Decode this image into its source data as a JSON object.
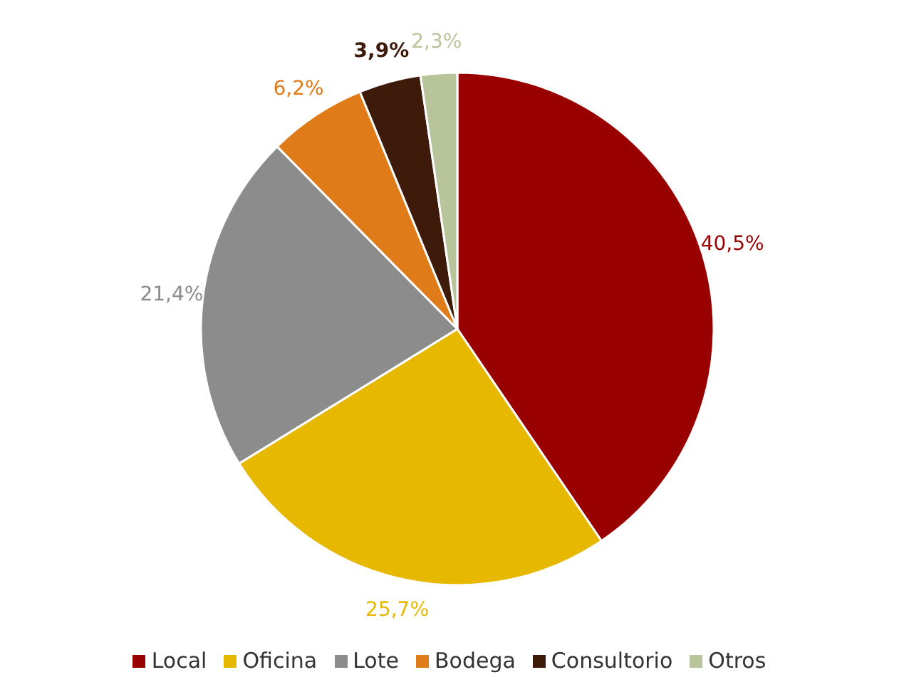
{
  "chart_data": {
    "type": "pie",
    "categories": [
      "Local",
      "Oficina",
      "Lote",
      "Bodega",
      "Consultorio",
      "Otros"
    ],
    "values": [
      40.5,
      25.7,
      21.4,
      6.2,
      3.9,
      2.3
    ],
    "colors": [
      "#990000",
      "#e6b800",
      "#8c8c8c",
      "#e07b1a",
      "#3d1a0a",
      "#b8c49a"
    ],
    "value_labels": [
      "40,5%",
      "25,7%",
      "21,4%",
      "6,2%",
      "3,9%",
      "2,3%"
    ],
    "legend": "bottom"
  }
}
